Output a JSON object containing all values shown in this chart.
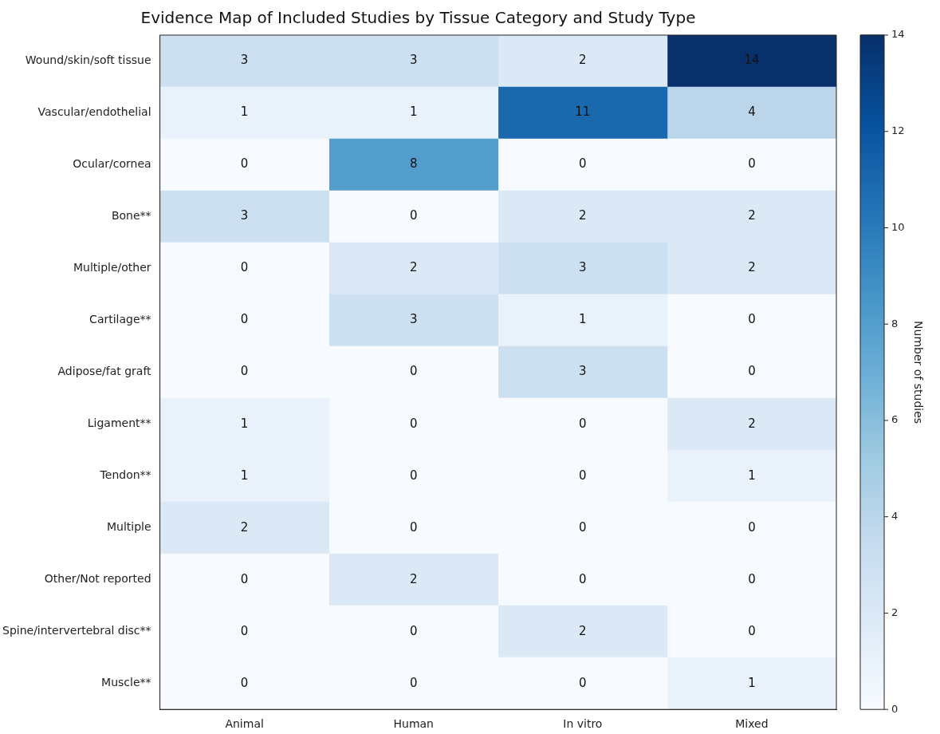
{
  "chart_data": {
    "type": "heatmap",
    "title": "Evidence Map of Included Studies by Tissue Category and Study Type",
    "categories": [
      "Animal",
      "Human",
      "In vitro",
      "Mixed"
    ],
    "y_categories": [
      "Wound/skin/soft tissue",
      "Vascular/endothelial",
      "Ocular/cornea",
      "Bone**",
      "Multiple/other",
      "Cartilage**",
      "Adipose/fat graft",
      "Ligament**",
      "Tendon**",
      "Multiple",
      "Other/Not reported",
      "Spine/intervertebral disc**",
      "Muscle**"
    ],
    "cells": [
      [
        3,
        3,
        2,
        14
      ],
      [
        1,
        1,
        11,
        4
      ],
      [
        0,
        8,
        0,
        0
      ],
      [
        3,
        0,
        2,
        2
      ],
      [
        0,
        2,
        3,
        2
      ],
      [
        0,
        3,
        1,
        0
      ],
      [
        0,
        0,
        3,
        0
      ],
      [
        1,
        0,
        0,
        2
      ],
      [
        1,
        0,
        0,
        1
      ],
      [
        2,
        0,
        0,
        0
      ],
      [
        0,
        2,
        0,
        0
      ],
      [
        0,
        0,
        2,
        0
      ],
      [
        0,
        0,
        0,
        1
      ]
    ],
    "data_labels": true,
    "clim": [
      0,
      14
    ],
    "cticks": [
      0,
      2,
      4,
      6,
      8,
      10,
      12,
      14
    ],
    "clabel": "Number of studies"
  }
}
